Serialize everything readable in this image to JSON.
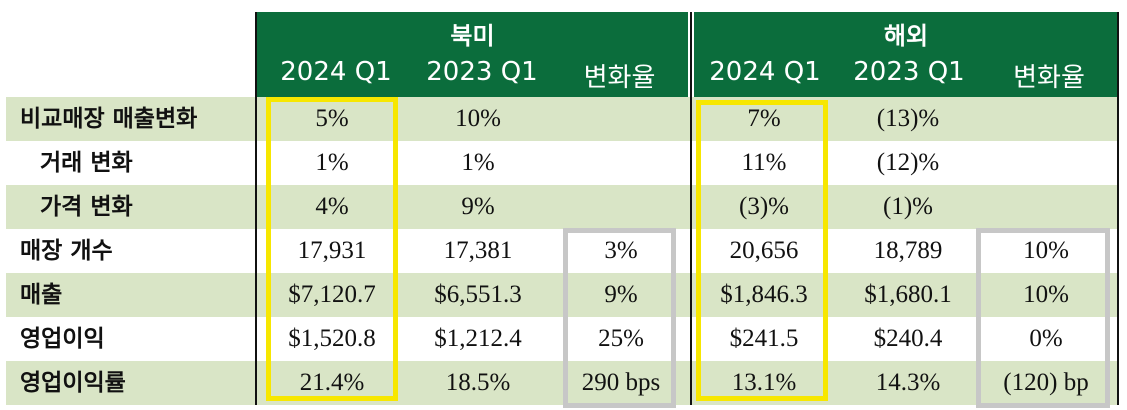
{
  "regions": {
    "north_america": "북미",
    "international": "해외"
  },
  "columns": {
    "current": "2024 Q1",
    "prior": "2023 Q1",
    "change": "변화율"
  },
  "rows": [
    {
      "label": "비교매장 매출변화",
      "na": [
        "5%",
        "10%",
        ""
      ],
      "intl": [
        "7%",
        "(13)%",
        ""
      ]
    },
    {
      "label": "거래 변화",
      "na": [
        "1%",
        "1%",
        ""
      ],
      "intl": [
        "11%",
        "(12)%",
        ""
      ]
    },
    {
      "label": "가격 변화",
      "na": [
        "4%",
        "9%",
        ""
      ],
      "intl": [
        "(3)%",
        "(1)%",
        ""
      ]
    },
    {
      "label": "매장 개수",
      "na": [
        "17,931",
        "17,381",
        "3%"
      ],
      "intl": [
        "20,656",
        "18,789",
        "10%"
      ]
    },
    {
      "label": "매출",
      "na": [
        "$7,120.7",
        "$6,551.3",
        "9%"
      ],
      "intl": [
        "$1,846.3",
        "$1,680.1",
        "10%"
      ]
    },
    {
      "label": "영업이익",
      "na": [
        "$1,520.8",
        "$1,212.4",
        "25%"
      ],
      "intl": [
        "$241.5",
        "$240.4",
        "0%"
      ]
    },
    {
      "label": "영업이익률",
      "na": [
        "21.4%",
        "18.5%",
        "290 bps"
      ],
      "intl": [
        "13.1%",
        "14.3%",
        "(120) bp"
      ]
    }
  ],
  "colors": {
    "header_green": "#0b6d3c",
    "row_green": "#d9e5c6",
    "highlight_yellow": "#f7e700",
    "highlight_gray": "#c7c7c7"
  }
}
